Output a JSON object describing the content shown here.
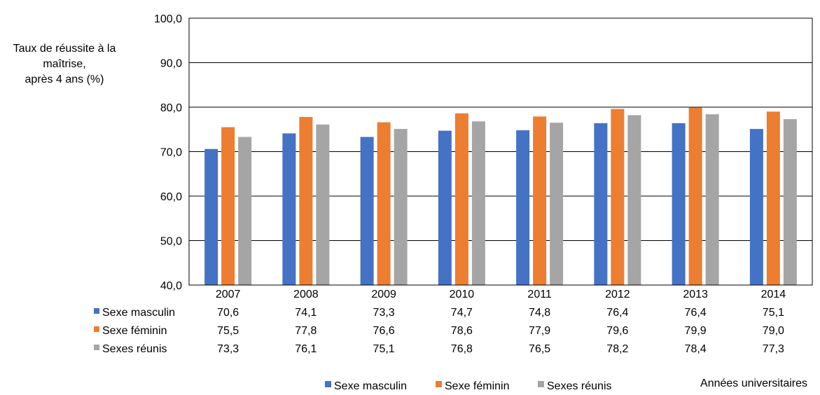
{
  "chart_data": {
    "type": "bar",
    "ylabel": [
      "Taux de réussite à la",
      "maîtrise,",
      "après 4 ans (%)"
    ],
    "xlabel": "Années universitaires",
    "ylim": [
      40,
      100
    ],
    "yticks": [
      "40,0",
      "50,0",
      "60,0",
      "70,0",
      "80,0",
      "90,0",
      "100,0"
    ],
    "categories": [
      "2007",
      "2008",
      "2009",
      "2010",
      "2011",
      "2012",
      "2013",
      "2014"
    ],
    "series": [
      {
        "name": "Sexe masculin",
        "color": "#4472C4",
        "values": [
          70.6,
          74.1,
          73.3,
          74.7,
          74.8,
          76.4,
          76.4,
          75.1
        ],
        "labels": [
          "70,6",
          "74,1",
          "73,3",
          "74,7",
          "74,8",
          "76,4",
          "76,4",
          "75,1"
        ]
      },
      {
        "name": "Sexe féminin",
        "color": "#ED7D31",
        "values": [
          75.5,
          77.8,
          76.6,
          78.6,
          77.9,
          79.6,
          79.9,
          79.0
        ],
        "labels": [
          "75,5",
          "77,8",
          "76,6",
          "78,6",
          "77,9",
          "79,6",
          "79,9",
          "79,0"
        ]
      },
      {
        "name": "Sexes réunis",
        "color": "#A5A5A5",
        "values": [
          73.3,
          76.1,
          75.1,
          76.8,
          76.5,
          78.2,
          78.4,
          77.3
        ],
        "labels": [
          "73,3",
          "76,1",
          "75,1",
          "76,8",
          "76,5",
          "78,2",
          "78,4",
          "77,3"
        ]
      }
    ],
    "grid": true,
    "legend": "bottom",
    "data_table": true
  }
}
